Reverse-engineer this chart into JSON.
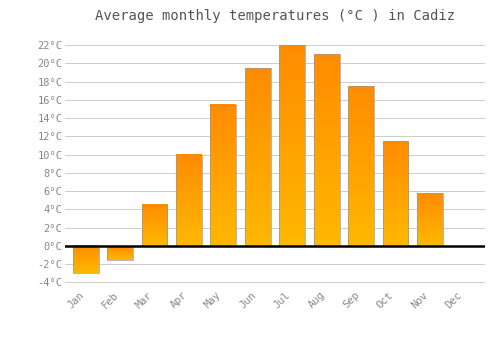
{
  "months": [
    "Jan",
    "Feb",
    "Mar",
    "Apr",
    "May",
    "Jun",
    "Jul",
    "Aug",
    "Sep",
    "Oct",
    "Nov",
    "Dec"
  ],
  "values": [
    -3.0,
    -1.5,
    4.5,
    10.0,
    15.5,
    19.5,
    22.0,
    21.0,
    17.5,
    11.5,
    5.8,
    0.0
  ],
  "bar_color": "#FFA500",
  "bar_edge_color": "#999999",
  "title": "Average monthly temperatures (°C ) in Cadiz",
  "title_fontsize": 10,
  "ylim": [
    -4.5,
    23.5
  ],
  "yticks": [
    -4,
    -2,
    0,
    2,
    4,
    6,
    8,
    10,
    12,
    14,
    16,
    18,
    20,
    22
  ],
  "ytick_labels": [
    "-4°C",
    "-2°C",
    "0°C",
    "2°C",
    "4°C",
    "6°C",
    "8°C",
    "10°C",
    "12°C",
    "14°C",
    "16°C",
    "18°C",
    "20°C",
    "22°C"
  ],
  "background_color": "#ffffff",
  "plot_bg_color": "#ffffff",
  "grid_color": "#cccccc",
  "zero_line_color": "#000000",
  "font_color": "#888888",
  "title_color": "#555555",
  "bar_width": 0.75,
  "figsize": [
    5.0,
    3.5
  ],
  "dpi": 100
}
